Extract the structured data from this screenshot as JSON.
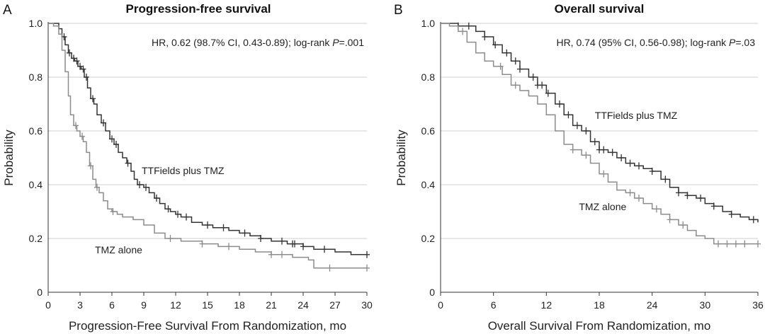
{
  "chart_data": [
    {
      "type": "line",
      "panel_label": "A",
      "title": "Progression-free survival",
      "xlabel": "Progression-Free Survival From Randomization, mo",
      "ylabel": "Probability",
      "xlim": [
        0,
        30
      ],
      "ylim": [
        0,
        1
      ],
      "xticks": [
        0,
        3,
        6,
        9,
        12,
        15,
        18,
        21,
        24,
        27,
        30
      ],
      "yticks": [
        0,
        0.2,
        0.4,
        0.6,
        0.8,
        1.0
      ],
      "ytick_labels": [
        "0",
        "0.2",
        "0.4",
        "0.6",
        "0.8",
        "1.0"
      ],
      "grid": "horizontal",
      "annotation_prefix": "HR, 0.62 (98.7% CI, 0.43-0.89); log-rank ",
      "annotation_p": "P",
      "annotation_suffix": "=.001",
      "series": [
        {
          "name": "TTFields plus TMZ",
          "color": "#333333",
          "x": [
            0,
            0.5,
            1.0,
            1.3,
            1.6,
            1.9,
            2.2,
            2.5,
            2.8,
            3.1,
            3.4,
            3.7,
            4.0,
            4.3,
            4.6,
            5.0,
            5.4,
            5.8,
            6.2,
            6.6,
            7.0,
            7.4,
            7.8,
            8.1,
            8.4,
            9.0,
            9.5,
            10.0,
            10.5,
            11.0,
            11.5,
            12.0,
            12.5,
            13.5,
            14.5,
            15.5,
            17.0,
            18.0,
            19.0,
            20.0,
            21.0,
            22.5,
            24.0,
            25.0,
            27.0,
            28.5,
            30.0
          ],
          "y": [
            1.0,
            1.0,
            0.98,
            0.95,
            0.92,
            0.89,
            0.87,
            0.86,
            0.84,
            0.83,
            0.8,
            0.76,
            0.72,
            0.7,
            0.66,
            0.63,
            0.6,
            0.57,
            0.55,
            0.52,
            0.5,
            0.48,
            0.45,
            0.42,
            0.4,
            0.39,
            0.37,
            0.35,
            0.33,
            0.31,
            0.3,
            0.29,
            0.28,
            0.26,
            0.25,
            0.24,
            0.23,
            0.22,
            0.21,
            0.2,
            0.19,
            0.18,
            0.17,
            0.16,
            0.15,
            0.14,
            0.14
          ],
          "censor_x": [
            1.5,
            2.0,
            2.4,
            2.7,
            3.0,
            3.3,
            3.6,
            4.2,
            5.2,
            6.0,
            6.4,
            7.5,
            8.6,
            9.2,
            10.2,
            11.3,
            12.2,
            13.0,
            15.0,
            16.5,
            18.5,
            20.0,
            22.0,
            23.0,
            23.2,
            24.0,
            26.0,
            30.0
          ]
        },
        {
          "name": "TMZ alone",
          "color": "#8c8c8c",
          "x": [
            0,
            0.5,
            1.0,
            1.3,
            1.6,
            1.9,
            2.1,
            2.4,
            2.7,
            3.0,
            3.3,
            3.6,
            3.9,
            4.2,
            4.5,
            4.8,
            5.2,
            5.6,
            6.0,
            6.5,
            7.0,
            8.0,
            9.0,
            10.0,
            11.0,
            12.5,
            14.5,
            16.0,
            18.0,
            19.5,
            21.0,
            23.0,
            24.5,
            25.0,
            30.0
          ],
          "y": [
            1.0,
            0.99,
            0.96,
            0.9,
            0.82,
            0.73,
            0.66,
            0.62,
            0.6,
            0.58,
            0.56,
            0.52,
            0.47,
            0.42,
            0.39,
            0.37,
            0.34,
            0.31,
            0.3,
            0.29,
            0.28,
            0.27,
            0.25,
            0.22,
            0.2,
            0.19,
            0.18,
            0.17,
            0.16,
            0.15,
            0.14,
            0.13,
            0.12,
            0.09,
            0.09
          ],
          "censor_x": [
            2.6,
            3.2,
            4.0,
            4.6,
            6.1,
            11.5,
            14.5,
            17.0,
            21.0,
            22.0,
            26.5,
            30.0
          ]
        }
      ],
      "series_label_positions": [
        {
          "label_x": 8.8,
          "label_y": 0.44
        },
        {
          "label_x": 4.4,
          "label_y": 0.145
        }
      ]
    },
    {
      "type": "line",
      "panel_label": "B",
      "title": "Overall survival",
      "xlabel": "Overall Survival From Randomization, mo",
      "ylabel": "Probability",
      "xlim": [
        0,
        36
      ],
      "ylim": [
        0,
        1
      ],
      "xticks": [
        0,
        6,
        12,
        18,
        24,
        30,
        36
      ],
      "yticks": [
        0,
        0.2,
        0.4,
        0.6,
        0.8,
        1.0
      ],
      "ytick_labels": [
        "0",
        "0.2",
        "0.4",
        "0.6",
        "0.8",
        "1.0"
      ],
      "grid": "horizontal",
      "annotation_prefix": "HR, 0.74 (95% CI, 0.56-0.98); log-rank ",
      "annotation_p": "P",
      "annotation_suffix": "=.03",
      "series": [
        {
          "name": "TTFields plus TMZ",
          "color": "#333333",
          "x": [
            0,
            1.0,
            2.0,
            3.0,
            4.0,
            5.0,
            6.0,
            7.0,
            8.0,
            9.0,
            10.0,
            11.0,
            12.0,
            13.0,
            14.0,
            15.0,
            16.0,
            17.0,
            18.0,
            19.0,
            20.0,
            21.0,
            22.0,
            23.0,
            24.0,
            25.0,
            26.0,
            27.0,
            28.0,
            29.0,
            30.0,
            31.0,
            32.0,
            33.0,
            34.0,
            35.0,
            36.0
          ],
          "y": [
            1.0,
            1.0,
            0.99,
            0.99,
            0.97,
            0.95,
            0.92,
            0.89,
            0.86,
            0.83,
            0.8,
            0.77,
            0.74,
            0.7,
            0.66,
            0.62,
            0.6,
            0.56,
            0.53,
            0.52,
            0.5,
            0.48,
            0.47,
            0.46,
            0.45,
            0.42,
            0.39,
            0.37,
            0.36,
            0.35,
            0.33,
            0.32,
            0.3,
            0.29,
            0.28,
            0.27,
            0.26
          ],
          "censor_x": [
            2.0,
            3.2,
            5.0,
            6.2,
            7.5,
            8.5,
            9.0,
            10.5,
            11.0,
            11.5,
            12.2,
            13.5,
            14.5,
            15.5,
            16.5,
            17.5,
            18.0,
            18.5,
            19.5,
            20.5,
            21.5,
            22.5,
            24.0,
            25.5,
            27.0,
            28.0,
            29.5,
            31.0,
            33.0,
            35.5
          ]
        },
        {
          "name": "TMZ alone",
          "color": "#8c8c8c",
          "x": [
            0,
            1.0,
            2.0,
            3.0,
            4.0,
            5.0,
            6.0,
            7.0,
            8.0,
            9.0,
            10.0,
            11.0,
            12.0,
            13.0,
            14.0,
            15.0,
            16.0,
            17.0,
            18.0,
            19.0,
            20.0,
            21.0,
            22.0,
            23.0,
            24.0,
            25.0,
            26.0,
            27.0,
            28.0,
            29.0,
            30.0,
            31.0,
            32.0,
            36.0
          ],
          "y": [
            1.0,
            0.99,
            0.97,
            0.93,
            0.89,
            0.86,
            0.84,
            0.81,
            0.77,
            0.75,
            0.73,
            0.7,
            0.66,
            0.6,
            0.55,
            0.53,
            0.51,
            0.48,
            0.44,
            0.41,
            0.38,
            0.37,
            0.35,
            0.33,
            0.31,
            0.29,
            0.27,
            0.25,
            0.23,
            0.21,
            0.2,
            0.18,
            0.18,
            0.18
          ],
          "censor_x": [
            2.5,
            6.8,
            8.5,
            15.0,
            16.5,
            18.5,
            21.5,
            22.5,
            24.5,
            26.0,
            27.5,
            31.5,
            32.5,
            33.5,
            34.5,
            36.0
          ]
        }
      ],
      "series_label_positions": [
        {
          "label_x": 17.5,
          "label_y": 0.645
        },
        {
          "label_x": 15.7,
          "label_y": 0.305
        }
      ]
    }
  ]
}
